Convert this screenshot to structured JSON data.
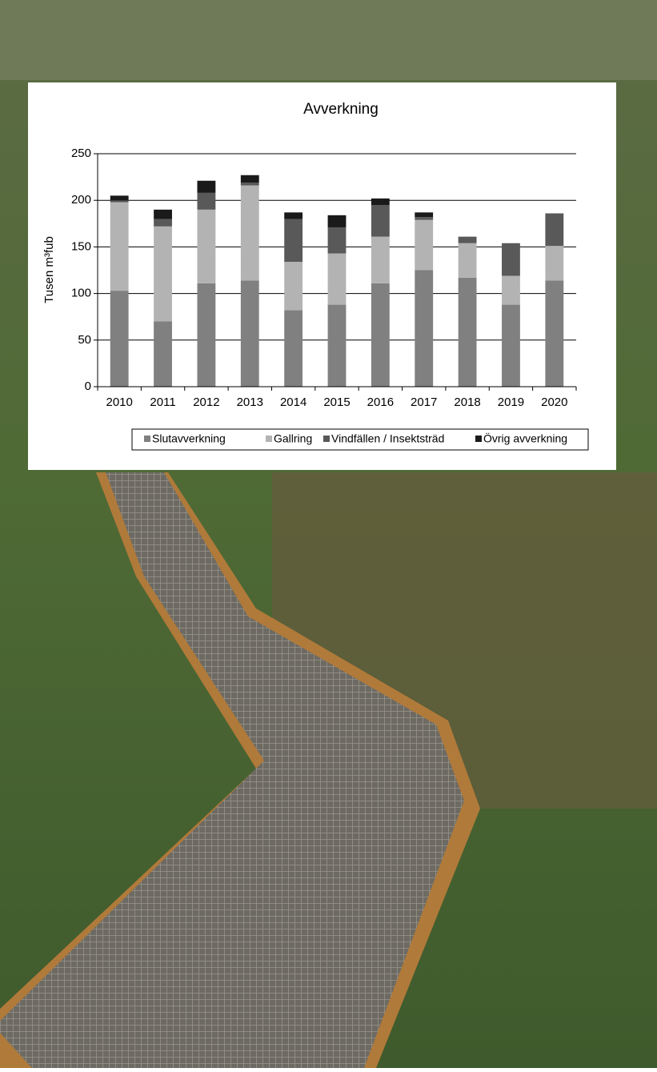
{
  "chart_data": {
    "type": "stacked_bar",
    "title": "Avverkning",
    "y_label": "Tusen m³fub",
    "categories": [
      "2010",
      "2011",
      "2012",
      "2013",
      "2014",
      "2015",
      "2016",
      "2017",
      "2018",
      "2019",
      "2020"
    ],
    "series": [
      {
        "name": "Slutavverkning",
        "color": "#808080",
        "values": [
          103,
          70,
          111,
          114,
          82,
          88,
          111,
          125,
          117,
          88,
          114
        ]
      },
      {
        "name": "Gallring",
        "color": "#b3b3b3",
        "values": [
          95,
          102,
          79,
          102,
          52,
          55,
          50,
          54,
          37,
          31,
          37
        ]
      },
      {
        "name": "Vindfällen / Insektsträd",
        "color": "#595959",
        "values": [
          2,
          8,
          18,
          3,
          46,
          28,
          34,
          3,
          7,
          35,
          35
        ]
      },
      {
        "name": "Övrig avverkning",
        "color": "#1a1a1a",
        "values": [
          5,
          10,
          13,
          8,
          7,
          13,
          7,
          5,
          0,
          0,
          0
        ]
      }
    ],
    "ylim": [
      0,
      250
    ],
    "yticks": [
      0,
      50,
      100,
      150,
      200,
      250
    ],
    "grid": true,
    "legend": "bottom"
  }
}
